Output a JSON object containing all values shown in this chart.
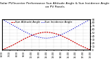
{
  "title": "Solar PV/Inverter Performance Sun Altitude Angle & Sun Incidence Angle on PV Panels",
  "legend_blue": "Sun Incidence Angle",
  "legend_red": "Sun Altitude Angle",
  "x_values": [
    6,
    6.5,
    7,
    7.5,
    8,
    8.5,
    9,
    9.5,
    10,
    10.5,
    11,
    11.5,
    12,
    12.5,
    13,
    13.5,
    14,
    14.5,
    15,
    15.5,
    16,
    16.5,
    17,
    17.5,
    18
  ],
  "altitude_values": [
    0,
    4,
    9,
    14,
    20,
    26,
    32,
    37,
    42,
    46,
    49,
    51,
    52,
    51,
    49,
    46,
    42,
    37,
    32,
    26,
    20,
    14,
    9,
    4,
    0
  ],
  "incidence_values": [
    90,
    84,
    78,
    72,
    66,
    60,
    54,
    49,
    44,
    40,
    37,
    35,
    34,
    35,
    37,
    40,
    44,
    49,
    54,
    60,
    66,
    72,
    78,
    84,
    90
  ],
  "xlim": [
    6,
    18
  ],
  "ylim": [
    0,
    90
  ],
  "yticks": [
    0,
    10,
    20,
    30,
    40,
    50,
    60,
    70,
    80,
    90
  ],
  "xticks": [
    6,
    7,
    8,
    9,
    10,
    11,
    12,
    13,
    14,
    15,
    16,
    17,
    18
  ],
  "xtick_labels": [
    "6:00",
    "7:00",
    "8:00",
    "9:00",
    "10:00",
    "11:00",
    "12:00",
    "13:00",
    "14:00",
    "15:00",
    "16:00",
    "17:00",
    "18:00"
  ],
  "blue_color": "#0000cc",
  "red_color": "#cc0000",
  "bg_color": "#ffffff",
  "grid_color": "#aaaaaa",
  "title_fontsize": 3.2,
  "legend_fontsize": 2.8,
  "tick_fontsize": 2.5,
  "line_width": 0.8,
  "dot_size": 3.0
}
